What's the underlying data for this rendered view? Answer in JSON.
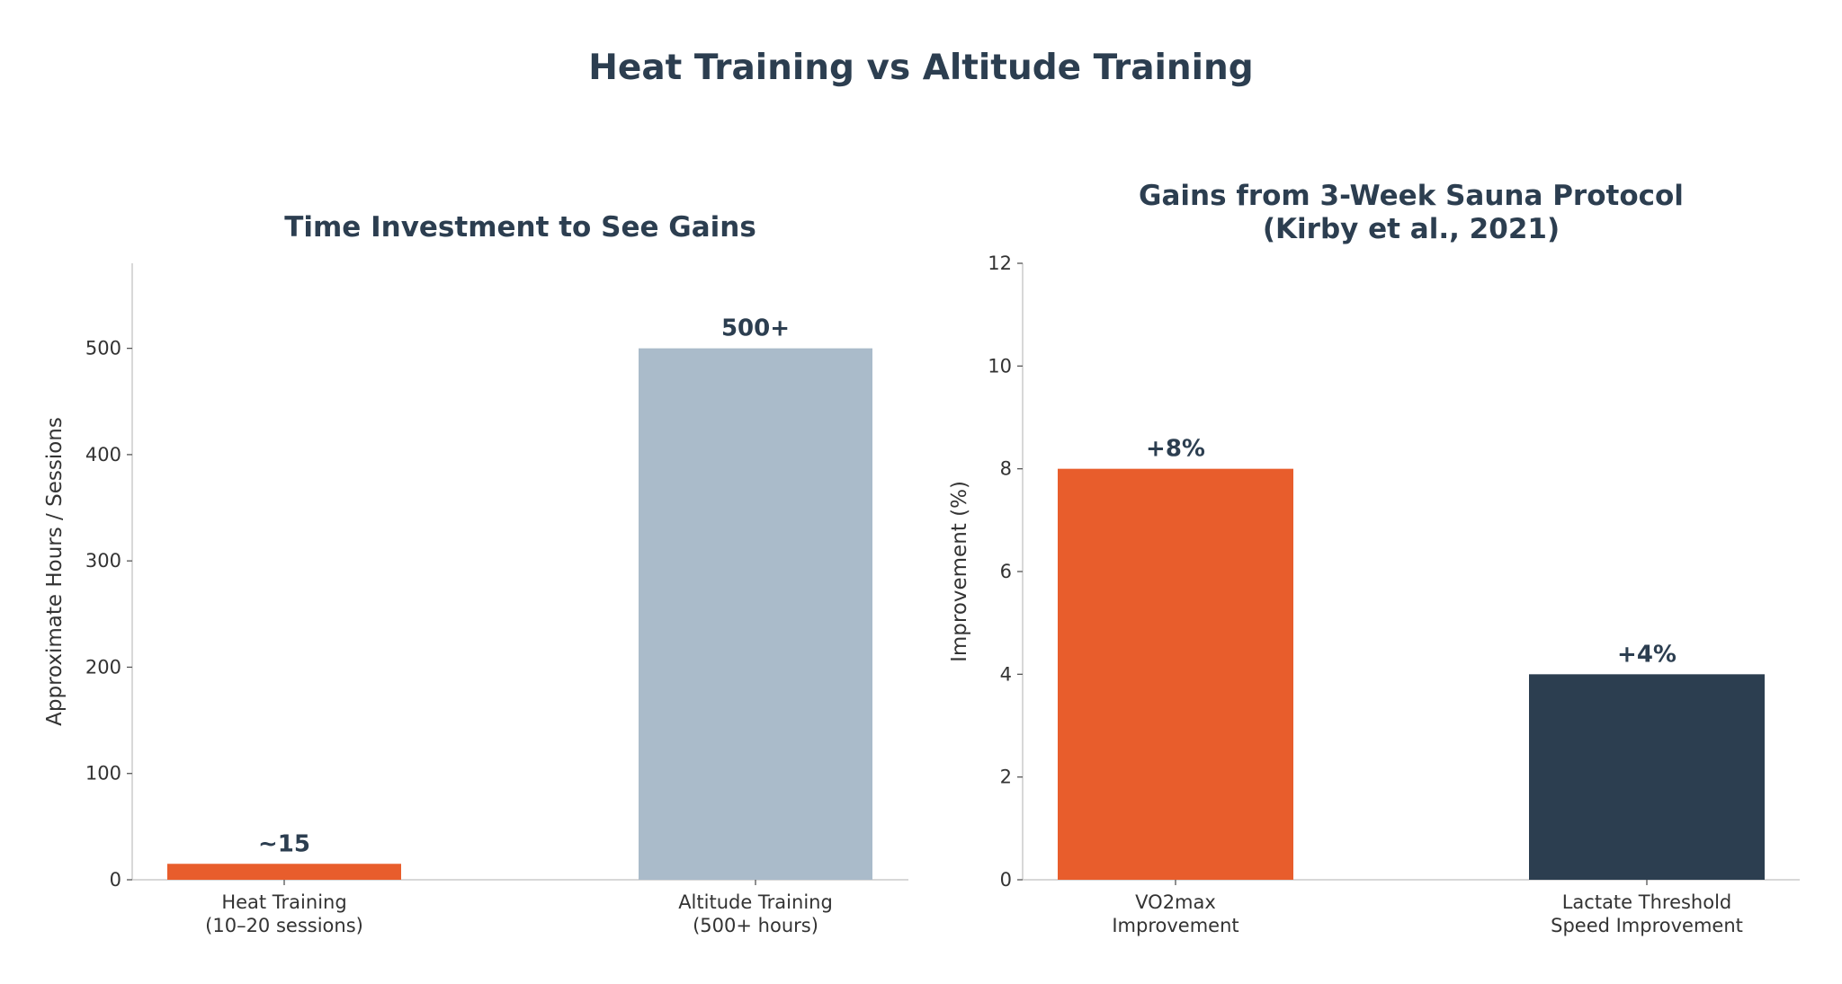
{
  "title": "Heat Training vs Altitude Training",
  "colors": {
    "orange": "#E85D2C",
    "slate": "#AABBCA",
    "navy": "#2C3E50"
  },
  "chart_data": [
    {
      "type": "bar",
      "title": "Time Investment to See Gains",
      "ylabel": "Approximate Hours / Sessions",
      "xlabel": "",
      "categories": [
        [
          "Heat Training",
          "(10–20 sessions)"
        ],
        [
          "Altitude Training",
          "(500+ hours)"
        ]
      ],
      "values": [
        15,
        500
      ],
      "data_labels": [
        "~15",
        "500+"
      ],
      "bar_colors": [
        "#E85D2C",
        "#AABBCA"
      ],
      "ylim": [
        0,
        580
      ],
      "yticks": [
        0,
        100,
        200,
        300,
        400,
        500
      ],
      "grid": false
    },
    {
      "type": "bar",
      "title": [
        "Gains from 3-Week Sauna Protocol",
        "(Kirby et al., 2021)"
      ],
      "ylabel": "Improvement (%)",
      "xlabel": "",
      "categories": [
        [
          "VO2max",
          "Improvement"
        ],
        [
          "Lactate Threshold",
          "Speed Improvement"
        ]
      ],
      "values": [
        8,
        4
      ],
      "data_labels": [
        "+8%",
        "+4%"
      ],
      "bar_colors": [
        "#E85D2C",
        "#2C3E50"
      ],
      "ylim": [
        0,
        12
      ],
      "yticks": [
        0,
        2,
        4,
        6,
        8,
        10,
        12
      ],
      "grid": false
    }
  ]
}
